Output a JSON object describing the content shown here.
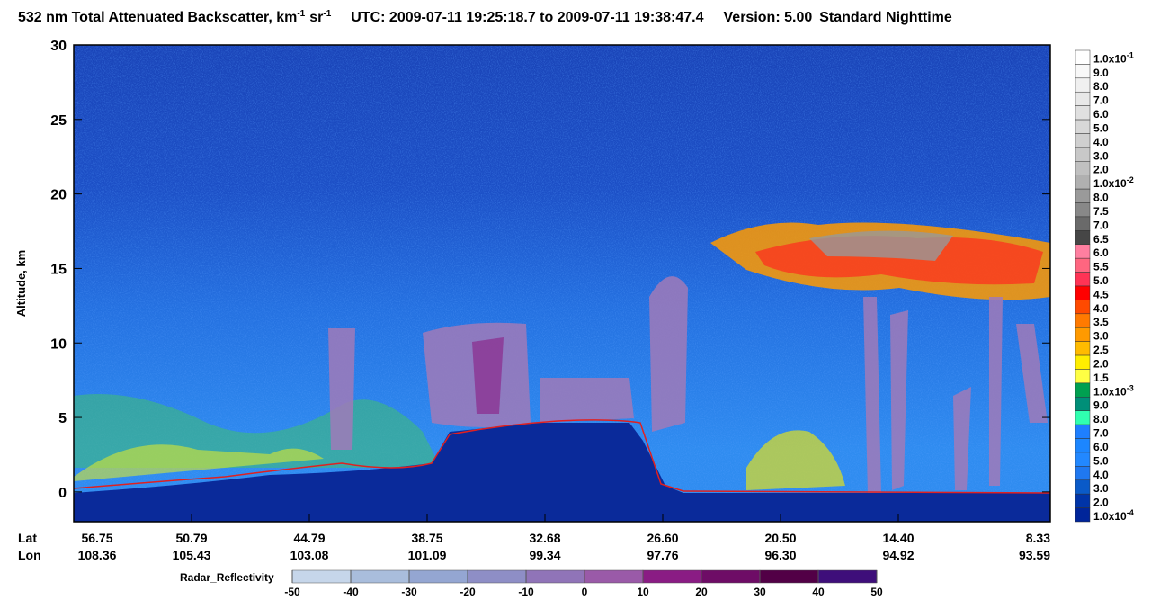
{
  "title": {
    "text": "532 nm Total Attenuated Backscatter, km",
    "exp1": "-1",
    "unit2": "sr",
    "exp2": "-1",
    "utc": "UTC:  2009-07-11 19:25:18.7  to  2009-07-11 19:38:47.4",
    "version": "Version: 5.00",
    "mode": "Standard  Nighttime"
  },
  "yaxis": {
    "label": "Altitude, km",
    "ylim": [
      -2,
      30
    ],
    "yticks": [
      0,
      5,
      10,
      15,
      20,
      25,
      30
    ]
  },
  "xaxis": {
    "lat_title": "Lat",
    "lon_title": "Lon",
    "lat": [
      "56.75",
      "50.79",
      "44.79",
      "38.75",
      "32.68",
      "26.60",
      "20.50",
      "14.40",
      "8.33"
    ],
    "lon": [
      "108.36",
      "105.43",
      "103.08",
      "101.09",
      "99.34",
      "97.76",
      "96.30",
      "94.92",
      "93.59"
    ]
  },
  "colorbar": {
    "labels": [
      {
        "text": "1.0x10",
        "sup": "-1"
      },
      "9.0",
      "8.0",
      "7.0",
      "6.0",
      "5.0",
      "4.0",
      "3.0",
      "2.0",
      {
        "text": "1.0x10",
        "sup": "-2"
      },
      "8.0",
      "7.5",
      "7.0",
      "6.5",
      "6.0",
      "5.5",
      "5.0",
      "4.5",
      "4.0",
      "3.5",
      "3.0",
      "2.5",
      "2.0",
      "1.5",
      {
        "text": "1.0x10",
        "sup": "-3"
      },
      "9.0",
      "8.0",
      "7.0",
      "6.0",
      "5.0",
      "4.0",
      "3.0",
      "2.0",
      {
        "text": "1.0x10",
        "sup": "-4"
      }
    ],
    "colors": [
      "#ffffff",
      "#f8f8f8",
      "#f0f0f0",
      "#e8e8e8",
      "#e0e0e0",
      "#d8d8d8",
      "#d0d0d0",
      "#c8c8c8",
      "#c0c0c0",
      "#b0b0b0",
      "#9a9a9a",
      "#888888",
      "#6a6a6a",
      "#464646",
      "#ff7fa0",
      "#ff6680",
      "#ff3355",
      "#ff0000",
      "#ff4a00",
      "#ff7a00",
      "#ff9a00",
      "#ffbb00",
      "#ffee00",
      "#ffff44",
      "#00a050",
      "#008f78",
      "#30ffb0",
      "#1e7fff",
      "#1c86ff",
      "#2288ff",
      "#1f78f0",
      "#0a5ac8",
      "#0034a8",
      "#00259a"
    ]
  },
  "radar": {
    "name": "Radar_Reflectivity",
    "xlim": [
      -50,
      50
    ],
    "xticks": [
      -50,
      -40,
      -30,
      -20,
      -10,
      0,
      10,
      20,
      30,
      40,
      50
    ],
    "colors": [
      "#c6d6ea",
      "#a9bddc",
      "#94a6d2",
      "#8e8ec6",
      "#9074b8",
      "#9a5aa8",
      "#8a1c84",
      "#6e0c66",
      "#520046",
      "#3e0e7a"
    ]
  }
}
